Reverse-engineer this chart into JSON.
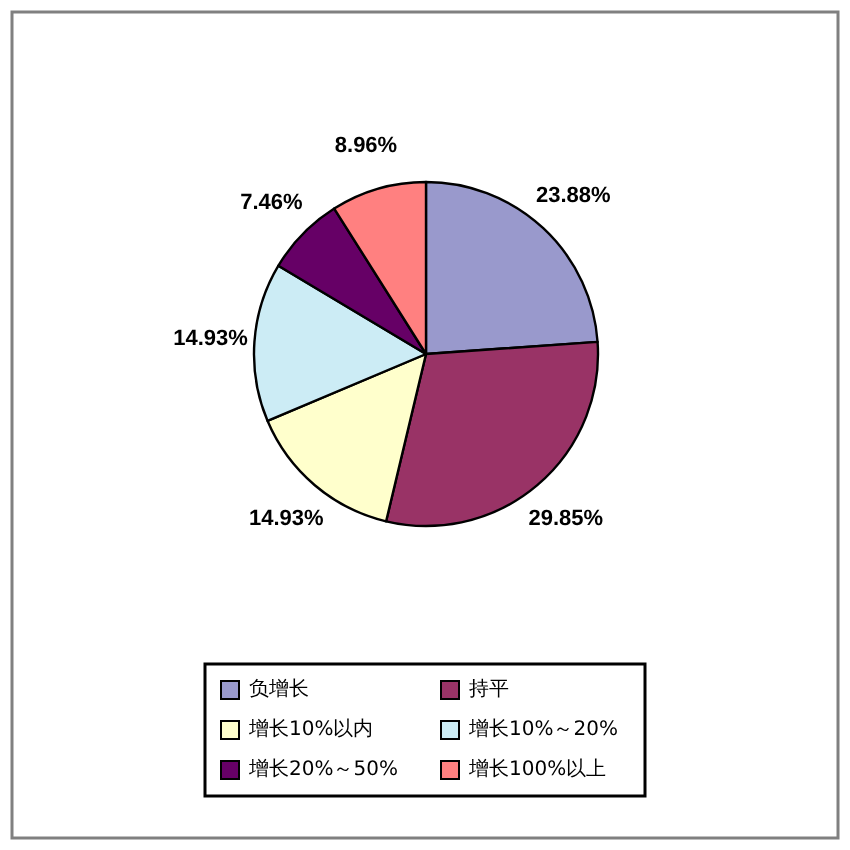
{
  "chart_data": {
    "type": "pie",
    "categories": [
      "负增长",
      "持平",
      "增长10%以内",
      "增长10%～20%",
      "增长20%～50%",
      "增长100%以上"
    ],
    "values": [
      23.88,
      29.85,
      14.93,
      14.93,
      7.46,
      8.96
    ],
    "colors": [
      "#9999cc",
      "#993366",
      "#ffffcc",
      "#ccecf5",
      "#660066",
      "#ff8080"
    ],
    "value_labels": [
      "23.88%",
      "29.85%",
      "14.93%",
      "14.93%",
      "7.46%",
      "8.96%"
    ],
    "legend": "bottom"
  }
}
